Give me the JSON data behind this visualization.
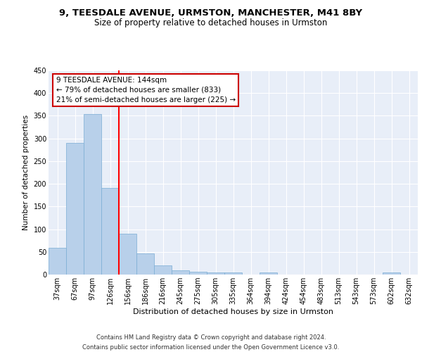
{
  "title1": "9, TEESDALE AVENUE, URMSTON, MANCHESTER, M41 8BY",
  "title2": "Size of property relative to detached houses in Urmston",
  "xlabel": "Distribution of detached houses by size in Urmston",
  "ylabel": "Number of detached properties",
  "categories": [
    "37sqm",
    "67sqm",
    "97sqm",
    "126sqm",
    "156sqm",
    "186sqm",
    "216sqm",
    "245sqm",
    "275sqm",
    "305sqm",
    "335sqm",
    "364sqm",
    "394sqm",
    "424sqm",
    "454sqm",
    "483sqm",
    "513sqm",
    "543sqm",
    "573sqm",
    "602sqm",
    "632sqm"
  ],
  "values": [
    59,
    290,
    354,
    191,
    90,
    46,
    20,
    9,
    6,
    5,
    5,
    0,
    5,
    0,
    0,
    0,
    0,
    0,
    0,
    5,
    0
  ],
  "bar_color": "#b8d0ea",
  "bar_edge_color": "#7aadd4",
  "bar_width": 1.0,
  "red_line_x": 3.5,
  "annotation_line1": "9 TEESDALE AVENUE: 144sqm",
  "annotation_line2": "← 79% of detached houses are smaller (833)",
  "annotation_line3": "21% of semi-detached houses are larger (225) →",
  "annotation_box_color": "#ffffff",
  "annotation_box_edge_color": "#cc0000",
  "footnote": "Contains HM Land Registry data © Crown copyright and database right 2024.\nContains public sector information licensed under the Open Government Licence v3.0.",
  "ylim": [
    0,
    450
  ],
  "bg_color": "#e8eef8",
  "grid_color": "#ffffff",
  "title1_fontsize": 9.5,
  "title2_fontsize": 8.5,
  "xlabel_fontsize": 8,
  "ylabel_fontsize": 7.5,
  "tick_fontsize": 7,
  "footnote_fontsize": 6,
  "annot_fontsize": 7.5
}
